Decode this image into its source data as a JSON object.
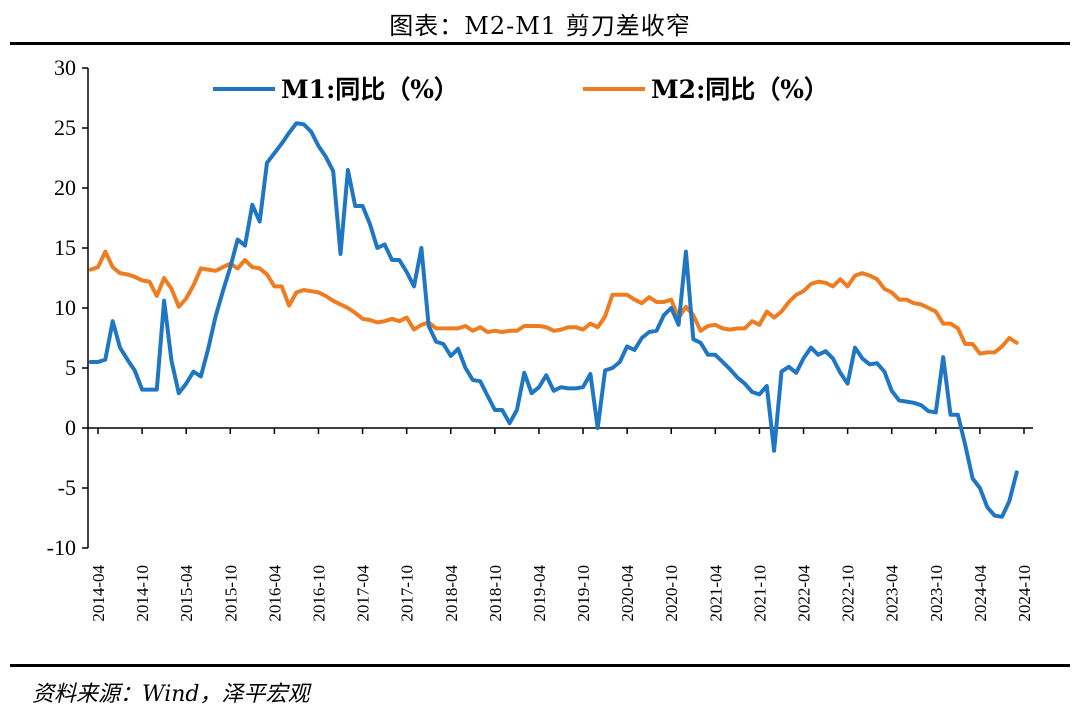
{
  "title": "图表：M2-M1 剪刀差收窄",
  "source": "资料来源：Wind，泽平宏观",
  "chart_data": {
    "type": "line",
    "ylim": [
      -10,
      30
    ],
    "yticks": [
      -10,
      -5,
      0,
      5,
      10,
      15,
      20,
      25,
      30
    ],
    "xticks": [
      "2014-04",
      "2014-10",
      "2015-04",
      "2015-10",
      "2016-04",
      "2016-10",
      "2017-04",
      "2017-10",
      "2018-04",
      "2018-10",
      "2019-04",
      "2019-10",
      "2020-04",
      "2020-10",
      "2021-04",
      "2021-10",
      "2022-04",
      "2022-10",
      "2023-04",
      "2023-10",
      "2024-04",
      "2024-10"
    ],
    "grid": false,
    "legend_position": "top",
    "x_start": "2014-03",
    "series": [
      {
        "name": "M1:同比（%）",
        "color": "#1f77c4",
        "values": [
          5.5,
          5.5,
          5.7,
          8.9,
          6.7,
          5.7,
          4.8,
          3.2,
          3.2,
          3.2,
          10.6,
          5.6,
          2.9,
          3.7,
          4.7,
          4.3,
          6.6,
          9.3,
          11.4,
          13.4,
          15.7,
          15.2,
          18.6,
          17.2,
          22.1,
          22.9,
          23.7,
          24.6,
          25.4,
          25.3,
          24.7,
          23.5,
          22.6,
          21.4,
          14.5,
          21.5,
          18.5,
          18.5,
          17.0,
          15.0,
          15.3,
          14.0,
          14.0,
          13.0,
          11.8,
          15.0,
          8.5,
          7.2,
          7.0,
          6.0,
          6.6,
          5.0,
          4.0,
          3.9,
          2.7,
          1.5,
          1.5,
          0.4,
          1.5,
          4.6,
          2.9,
          3.4,
          4.4,
          3.1,
          3.4,
          3.3,
          3.3,
          3.4,
          4.5,
          0.0,
          4.8,
          5.0,
          5.5,
          6.8,
          6.5,
          7.5,
          8.0,
          8.1,
          9.4,
          10.0,
          8.6,
          14.7,
          7.4,
          7.1,
          6.1,
          6.1,
          5.5,
          4.9,
          4.2,
          3.7,
          3.0,
          2.8,
          3.5,
          -1.9,
          4.7,
          5.1,
          4.6,
          5.8,
          6.7,
          6.1,
          6.4,
          5.8,
          4.6,
          3.7,
          6.7,
          5.8,
          5.3,
          5.4,
          4.7,
          3.1,
          2.3,
          2.2,
          2.1,
          1.9,
          1.4,
          1.3,
          5.9,
          1.1,
          1.1,
          -1.4,
          -4.2,
          -5.0,
          -6.6,
          -7.3,
          -7.4,
          -6.1,
          -3.7
        ]
      },
      {
        "name": "M2:同比（%）",
        "color": "#ee7d22",
        "values": [
          13.2,
          13.4,
          14.7,
          13.4,
          12.9,
          12.8,
          12.6,
          12.3,
          12.2,
          11.0,
          12.5,
          11.6,
          10.1,
          10.8,
          11.9,
          13.3,
          13.2,
          13.1,
          13.4,
          13.7,
          13.3,
          14.0,
          13.4,
          13.3,
          12.8,
          11.8,
          11.8,
          10.2,
          11.3,
          11.5,
          11.4,
          11.3,
          11.0,
          10.6,
          10.3,
          10.0,
          9.6,
          9.1,
          9.0,
          8.8,
          8.9,
          9.1,
          8.9,
          9.2,
          8.2,
          8.6,
          8.8,
          8.3,
          8.3,
          8.3,
          8.3,
          8.5,
          8.1,
          8.4,
          8.0,
          8.1,
          8.0,
          8.1,
          8.1,
          8.5,
          8.5,
          8.5,
          8.4,
          8.1,
          8.2,
          8.4,
          8.4,
          8.2,
          8.7,
          8.4,
          9.3,
          11.1,
          11.1,
          11.1,
          10.7,
          10.4,
          10.9,
          10.5,
          10.5,
          10.7,
          9.2,
          10.1,
          9.4,
          8.1,
          8.5,
          8.6,
          8.3,
          8.2,
          8.3,
          8.3,
          8.9,
          8.6,
          9.7,
          9.2,
          9.7,
          10.5,
          11.1,
          11.4,
          12.0,
          12.2,
          12.1,
          11.8,
          12.4,
          11.8,
          12.7,
          12.9,
          12.7,
          12.4,
          11.6,
          11.3,
          10.7,
          10.7,
          10.4,
          10.3,
          10.0,
          9.7,
          8.7,
          8.7,
          8.3,
          7.0,
          7.0,
          6.2,
          6.3,
          6.3,
          6.8,
          7.5,
          7.1
        ]
      }
    ]
  }
}
